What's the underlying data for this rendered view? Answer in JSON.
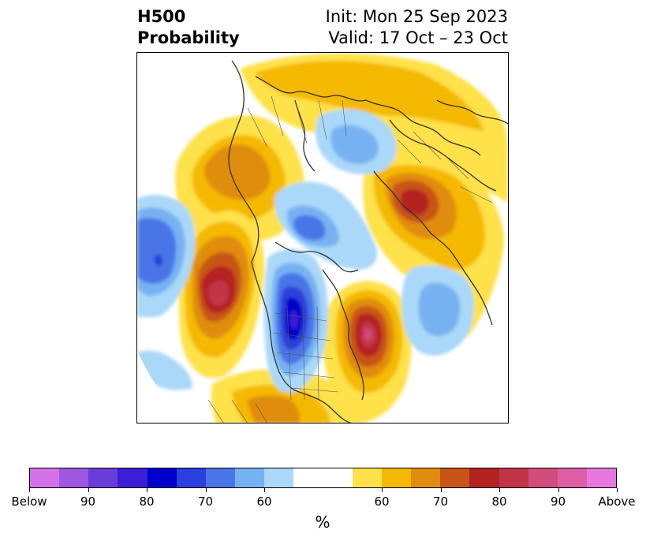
{
  "title": {
    "left_line1": "H500",
    "left_line2": "Probability",
    "right_line1": "Init: Mon 25 Sep 2023",
    "right_line2": "Valid: 17 Oct – 23 Oct"
  },
  "colorbar": {
    "colors": [
      "#d473e8",
      "#9e58e0",
      "#6a3ddb",
      "#3b1fd6",
      "#0000cc",
      "#2a3fdc",
      "#4a75e6",
      "#76b2f2",
      "#aad8f8",
      "#ffffff",
      "#ffffff",
      "#ffe149",
      "#f4b900",
      "#e08c10",
      "#c85418",
      "#b42320",
      "#c23448",
      "#cf4c7c",
      "#de5fa6",
      "#e678dd"
    ],
    "tick_labels": [
      "Below",
      "90",
      "80",
      "70",
      "60",
      "60",
      "70",
      "80",
      "90",
      "Above"
    ],
    "unit": "%"
  },
  "map": {
    "projection": "north polar stereographic",
    "anomalies": [
      {
        "name": "alaska-bering",
        "sign": "above",
        "level": "60-70"
      },
      {
        "name": "north-pacific-west",
        "sign": "below",
        "level": "70-80"
      },
      {
        "name": "northeast-pacific",
        "sign": "above",
        "level": "80-90"
      },
      {
        "name": "central-north-america",
        "sign": "below",
        "level": "80-90"
      },
      {
        "name": "north-atlantic-west",
        "sign": "above",
        "level": "80-90"
      },
      {
        "name": "north-atlantic-east",
        "sign": "below",
        "level": "60-70"
      },
      {
        "name": "northern-siberia",
        "sign": "below",
        "level": "60-70"
      },
      {
        "name": "scandinavia-russia",
        "sign": "above",
        "level": "70-80"
      },
      {
        "name": "arctic-canada",
        "sign": "below",
        "level": "60-70"
      }
    ]
  }
}
